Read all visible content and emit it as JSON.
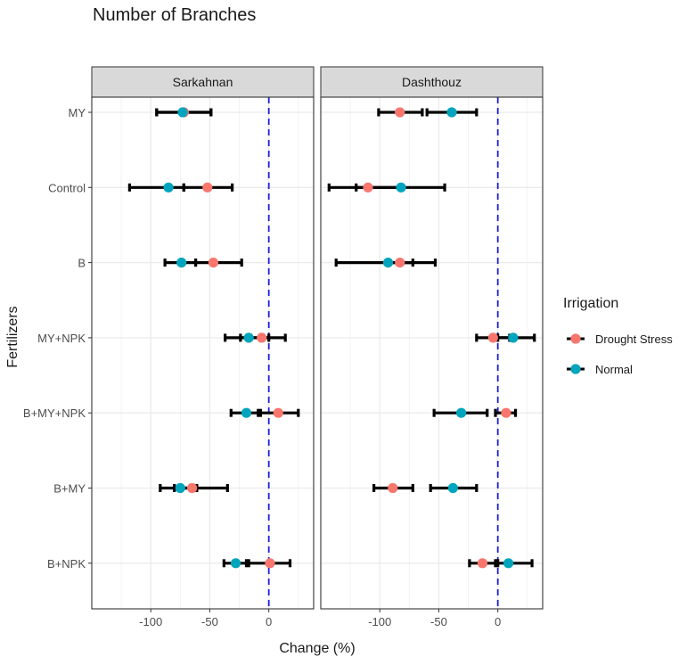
{
  "chart_data": {
    "type": "dot-errorbar",
    "title": "Number of Branches",
    "xlabel": "Change (%)",
    "ylabel": "Fertilizers",
    "xlim": [
      -150,
      38
    ],
    "xticks": [
      -100,
      -50,
      0
    ],
    "xtick_labels": [
      "-100",
      "-50",
      "0"
    ],
    "reference_line": 0,
    "categories": [
      "MY",
      "Control",
      "B",
      "MY+NPK",
      "B+MY+NPK",
      "B+MY",
      "B+NPK"
    ],
    "facets": [
      {
        "name": "Sarkahnan",
        "series": [
          {
            "name": "Drought Stress",
            "color": "#F8766D",
            "points": [
              {
                "category": "MY",
                "value": -72,
                "low": -95,
                "high": -49
              },
              {
                "category": "Control",
                "value": -52,
                "low": -72,
                "high": -31
              },
              {
                "category": "B",
                "value": -47,
                "low": -62,
                "high": -23
              },
              {
                "category": "MY+NPK",
                "value": -6,
                "low": -24,
                "high": 14
              },
              {
                "category": "B+MY+NPK",
                "value": 8,
                "low": -9,
                "high": 25
              },
              {
                "category": "B+MY",
                "value": -65,
                "low": -80,
                "high": -35
              },
              {
                "category": "B+NPK",
                "value": 1,
                "low": -17,
                "high": 18
              }
            ]
          },
          {
            "name": "Normal",
            "color": "#00A5BD",
            "points": [
              {
                "category": "MY",
                "value": -73,
                "low": -95,
                "high": -49
              },
              {
                "category": "Control",
                "value": -85,
                "low": -118,
                "high": -72
              },
              {
                "category": "B",
                "value": -74,
                "low": -88,
                "high": -62
              },
              {
                "category": "MY+NPK",
                "value": -17,
                "low": -37,
                "high": 0
              },
              {
                "category": "B+MY+NPK",
                "value": -19,
                "low": -32,
                "high": -7
              },
              {
                "category": "B+MY",
                "value": -75,
                "low": -92,
                "high": -61
              },
              {
                "category": "B+NPK",
                "value": -28,
                "low": -38,
                "high": -19
              }
            ]
          }
        ]
      },
      {
        "name": "Dashthouz",
        "series": [
          {
            "name": "Drought Stress",
            "color": "#F8766D",
            "points": [
              {
                "category": "MY",
                "value": -83,
                "low": -101,
                "high": -64
              },
              {
                "category": "Control",
                "value": -110,
                "low": -143,
                "high": -82
              },
              {
                "category": "B",
                "value": -83,
                "low": -93,
                "high": -72
              },
              {
                "category": "MY+NPK",
                "value": -4,
                "low": -18,
                "high": 10
              },
              {
                "category": "B+MY+NPK",
                "value": 7,
                "low": -2,
                "high": 15
              },
              {
                "category": "B+MY",
                "value": -89,
                "low": -105,
                "high": -72
              },
              {
                "category": "B+NPK",
                "value": -13,
                "low": -24,
                "high": 0
              }
            ]
          },
          {
            "name": "Normal",
            "color": "#00A5BD",
            "points": [
              {
                "category": "MY",
                "value": -39,
                "low": -60,
                "high": -18
              },
              {
                "category": "Control",
                "value": -82,
                "low": -120,
                "high": -45
              },
              {
                "category": "B",
                "value": -93,
                "low": -137,
                "high": -53
              },
              {
                "category": "MY+NPK",
                "value": 13,
                "low": 0,
                "high": 31
              },
              {
                "category": "B+MY+NPK",
                "value": -31,
                "low": -54,
                "high": -9
              },
              {
                "category": "B+MY",
                "value": -38,
                "low": -57,
                "high": -18
              },
              {
                "category": "B+NPK",
                "value": 9,
                "low": -2,
                "high": 29
              }
            ]
          }
        ]
      }
    ],
    "legend": {
      "title": "Irrigation",
      "position": "right",
      "items": [
        "Drought Stress",
        "Normal"
      ]
    }
  }
}
